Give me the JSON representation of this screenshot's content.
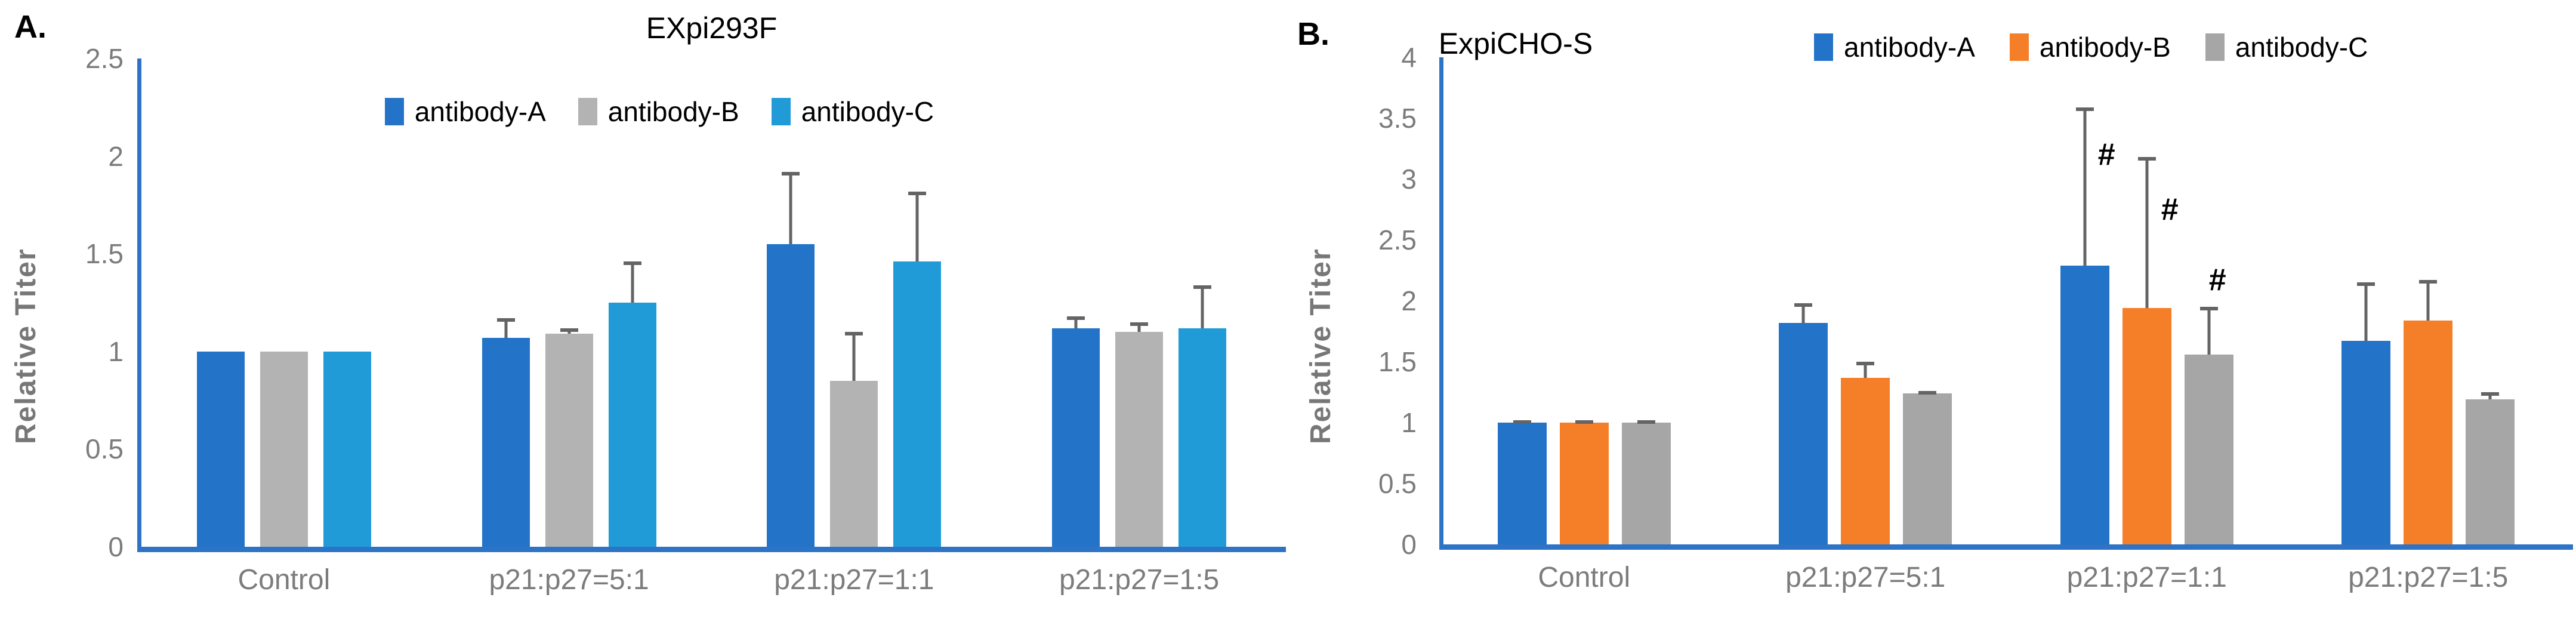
{
  "colors": {
    "axis_line": "#2E74C6",
    "error_bar": "#646464",
    "tick_text": "#7c7c7c",
    "axis_title_text": "#777777",
    "series_blue": "#2373C8",
    "series_gray_a": "#B3B3B3",
    "series_lightblue": "#209BD8",
    "series_orange": "#F57E28",
    "series_gray_b": "#A6A6A6"
  },
  "chart_data": [
    {
      "type": "bar",
      "panel_label": "A.",
      "title": "EXpi293F",
      "ylabel": "Relative Titer",
      "xlabel": "",
      "ylim": [
        0,
        2.5
      ],
      "yticks": [
        2.5,
        2,
        1.5,
        1,
        0.5,
        0
      ],
      "grid": false,
      "legend_position": "top-center-inside",
      "categories": [
        "Control",
        "p21:p27=5:1",
        "p21:p27=1:1",
        "p21:p27=1:5"
      ],
      "series": [
        {
          "name": "antibody-A",
          "color": "#2373C8",
          "values": [
            1.0,
            1.07,
            1.55,
            1.12
          ],
          "errors": [
            0,
            0.1,
            0.37,
            0.06
          ]
        },
        {
          "name": "antibody-B",
          "color": "#B3B3B3",
          "values": [
            1.0,
            1.09,
            0.85,
            1.1
          ],
          "errors": [
            0,
            0.03,
            0.25,
            0.05
          ]
        },
        {
          "name": "antibody-C",
          "color": "#209BD8",
          "values": [
            1.0,
            1.25,
            1.46,
            1.12
          ],
          "errors": [
            0,
            0.21,
            0.36,
            0.22
          ]
        }
      ],
      "annotations": []
    },
    {
      "type": "bar",
      "panel_label": "B.",
      "title": "ExpiCHO-S",
      "ylabel": "Relative Titer",
      "xlabel": "",
      "ylim": [
        0,
        4
      ],
      "yticks": [
        4,
        3.5,
        3,
        2.5,
        2,
        1.5,
        1,
        0.5,
        0
      ],
      "grid": false,
      "legend_position": "top-right-inline-with-title",
      "categories": [
        "Control",
        "p21:p27=5:1",
        "p21:p27=1:1",
        "p21:p27=1:5"
      ],
      "series": [
        {
          "name": "antibody-A",
          "color": "#2373C8",
          "values": [
            1.0,
            1.82,
            2.29,
            1.67
          ],
          "errors": [
            0.02,
            0.16,
            1.3,
            0.48
          ]
        },
        {
          "name": "antibody-B",
          "color": "#F57E28",
          "values": [
            1.0,
            1.37,
            1.94,
            1.84
          ],
          "errors": [
            0.02,
            0.13,
            1.24,
            0.33
          ]
        },
        {
          "name": "antibody-C",
          "color": "#A6A6A6",
          "values": [
            1.0,
            1.24,
            1.56,
            1.19
          ],
          "errors": [
            0.02,
            0.02,
            0.39,
            0.06
          ]
        }
      ],
      "annotations": [
        {
          "text": "#",
          "category_index": 2,
          "series_index": 0,
          "y": 3.2
        },
        {
          "text": "#",
          "category_index": 2,
          "series_index": 1,
          "y": 2.75
        },
        {
          "text": "#",
          "category_index": 2,
          "series_index": 2,
          "y": 2.17
        }
      ]
    }
  ]
}
